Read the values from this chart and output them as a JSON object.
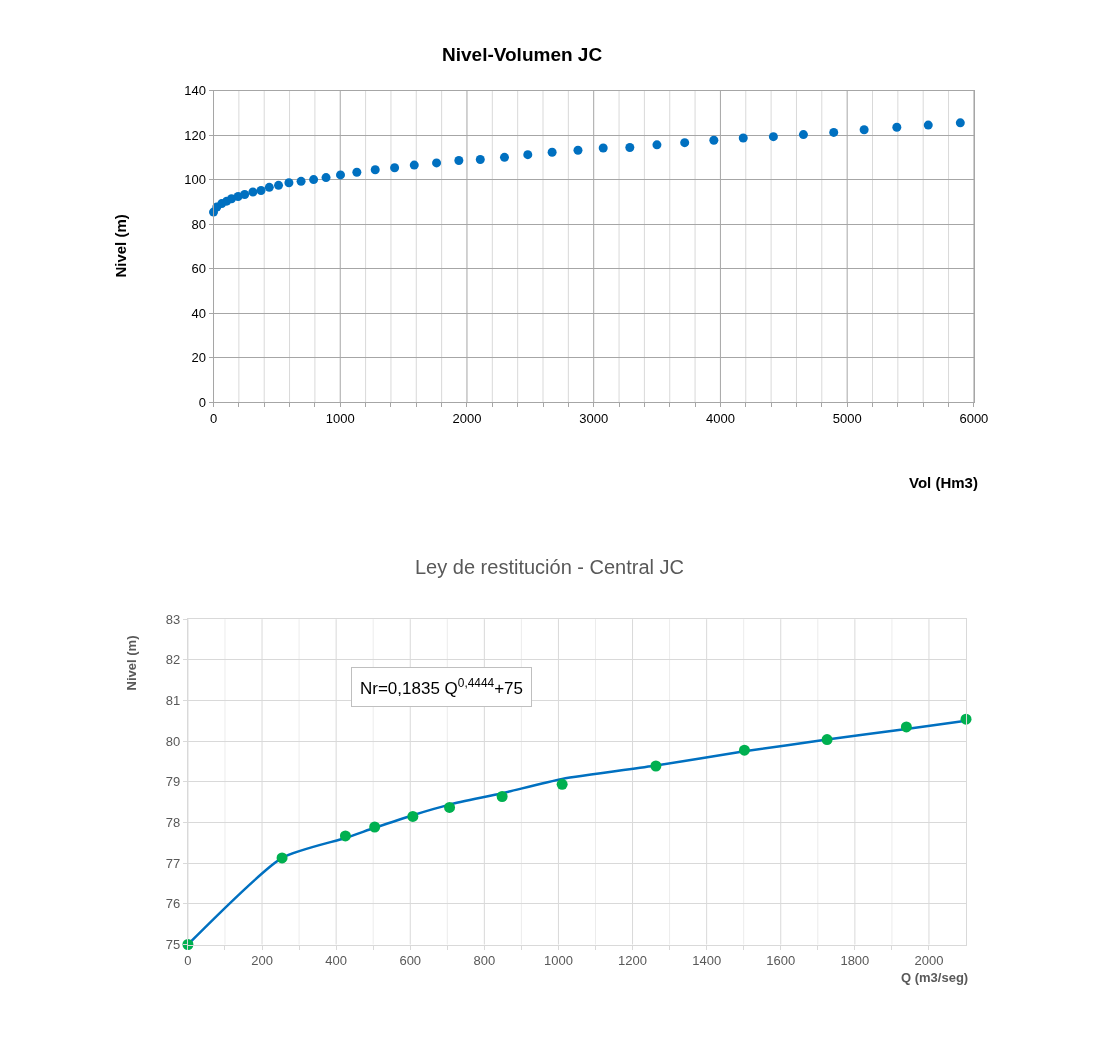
{
  "chart_data": [
    {
      "type": "scatter",
      "title": "Nivel-Volumen JC",
      "xlabel": "Vol (Hm3)",
      "ylabel": "Nivel (m)",
      "marker": "circle",
      "grid": true,
      "xlim": [
        0,
        6000
      ],
      "ylim": [
        0,
        140
      ],
      "xticks": [
        0,
        {
          "value": 200,
          "label": null
        },
        {
          "value": 400,
          "label": null
        },
        {
          "value": 600,
          "label": null
        },
        {
          "value": 800,
          "label": null
        },
        1000,
        {
          "value": 1200,
          "label": null
        },
        {
          "value": 1400,
          "label": null
        },
        {
          "value": 1600,
          "label": null
        },
        {
          "value": 1800,
          "label": null
        },
        2000,
        {
          "value": 2200,
          "label": null
        },
        {
          "value": 2400,
          "label": null
        },
        {
          "value": 2600,
          "label": null
        },
        {
          "value": 2800,
          "label": null
        },
        3000,
        {
          "value": 3200,
          "label": null
        },
        {
          "value": 3400,
          "label": null
        },
        {
          "value": 3600,
          "label": null
        },
        {
          "value": 3800,
          "label": null
        },
        4000,
        {
          "value": 4200,
          "label": null
        },
        {
          "value": 4400,
          "label": null
        },
        {
          "value": 4600,
          "label": null
        },
        {
          "value": 4800,
          "label": null
        },
        5000,
        {
          "value": 5200,
          "label": null
        },
        {
          "value": 5400,
          "label": null
        },
        {
          "value": 5600,
          "label": null
        },
        {
          "value": 5800,
          "label": null
        },
        6000
      ],
      "yticks": [
        0,
        20,
        40,
        60,
        80,
        100,
        120,
        140
      ],
      "series": [
        {
          "color": "#0070c0",
          "x": [
            0,
            26,
            65,
            104,
            142,
            194,
            246,
            311,
            375,
            440,
            513,
            595,
            691,
            790,
            888,
            1002,
            1131,
            1276,
            1429,
            1584,
            1760,
            1936,
            2105,
            2296,
            2480,
            2672,
            2876,
            3075,
            3285,
            3499,
            3718,
            3948,
            4180,
            4418,
            4655,
            4894,
            5134,
            5392,
            5640,
            5893
          ],
          "values": [
            85.5,
            87.8,
            89.3,
            90.4,
            91.5,
            92.5,
            93.4,
            94.5,
            95.2,
            96.6,
            97.5,
            98.7,
            99.3,
            100.1,
            101,
            102.2,
            103.4,
            104.5,
            105.4,
            106.6,
            107.6,
            108.7,
            109.1,
            110.1,
            111.3,
            112.4,
            113.3,
            114.3,
            114.5,
            115.7,
            116.7,
            117.8,
            118.8,
            119.4,
            120.3,
            121.3,
            122.5,
            123.6,
            124.6,
            125.6
          ]
        }
      ]
    },
    {
      "type": "line",
      "title": "Ley de restitución - Central JC",
      "xlabel": "Q (m3/seg)",
      "ylabel": "Nivel (m)",
      "grid": true,
      "annotations": [
        "Nr=0,1835 Q$^{0,4444}$+75"
      ],
      "xlim": [
        0,
        2100
      ],
      "ylim": [
        75,
        83
      ],
      "xticks": [
        0,
        {
          "value": 100,
          "label": null
        },
        200,
        {
          "value": 300,
          "label": null
        },
        400,
        {
          "value": 500,
          "label": null
        },
        600,
        {
          "value": 700,
          "label": null
        },
        800,
        {
          "value": 900,
          "label": null
        },
        1000,
        {
          "value": 1100,
          "label": null
        },
        1200,
        {
          "value": 1300,
          "label": null
        },
        1400,
        {
          "value": 1500,
          "label": null
        },
        1600,
        {
          "value": 1700,
          "label": null
        },
        1800,
        {
          "value": 1900,
          "label": null
        },
        2000
      ],
      "yticks": [
        75,
        76,
        77,
        78,
        79,
        80,
        81,
        82,
        83
      ],
      "series": [
        {
          "type": "line",
          "color": "#0070c0",
          "x": [
            0,
            254,
            425,
            504,
            607,
            706,
            848,
            1010,
            1263,
            1502,
            1725,
            1939,
            2100
          ],
          "values": [
            75,
            77.13,
            77.62,
            77.87,
            78.18,
            78.44,
            78.72,
            79.07,
            79.4,
            79.75,
            80.04,
            80.3,
            80.5
          ]
        },
        {
          "type": "scatter",
          "marker": "circle",
          "color": "#00b050",
          "x": [
            0,
            254,
            425,
            504,
            607,
            706,
            848,
            1010,
            1263,
            1502,
            1725,
            1939,
            2100
          ],
          "values": [
            75,
            77.13,
            77.67,
            77.89,
            78.15,
            78.37,
            78.64,
            78.94,
            79.39,
            79.78,
            80.04,
            80.35,
            80.54
          ]
        }
      ]
    }
  ]
}
